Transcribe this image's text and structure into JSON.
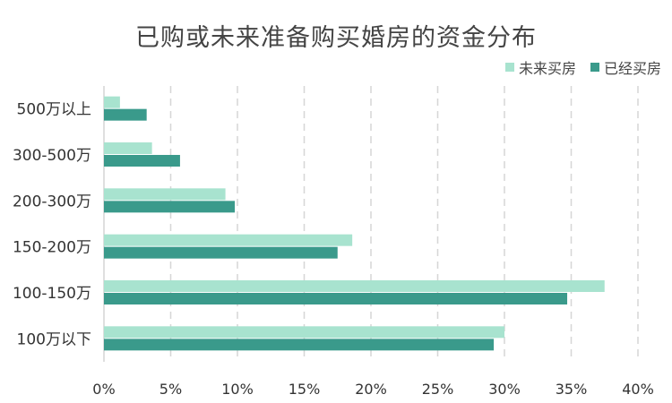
{
  "chart_data": {
    "type": "bar",
    "orientation": "horizontal",
    "title": "已购或未来准备购买婚房的资金分布",
    "xlabel": "",
    "ylabel": "",
    "categories": [
      "500万以上",
      "300-500万",
      "200-300万",
      "150-200万",
      "100-150万",
      "100万以下"
    ],
    "series": [
      {
        "name": "未来买房",
        "color": "#a8e3cf",
        "values": [
          1.2,
          3.6,
          9.1,
          18.6,
          37.5,
          30.0
        ]
      },
      {
        "name": "已经买房",
        "color": "#3a9a8b",
        "values": [
          3.2,
          5.7,
          9.8,
          17.5,
          34.7,
          29.2
        ]
      }
    ],
    "xlim": [
      0,
      40
    ],
    "xticks": [
      "0%",
      "5%",
      "10%",
      "15%",
      "20%",
      "25%",
      "30%",
      "35%",
      "40%"
    ],
    "grid": true,
    "legend_position": "top-right"
  }
}
